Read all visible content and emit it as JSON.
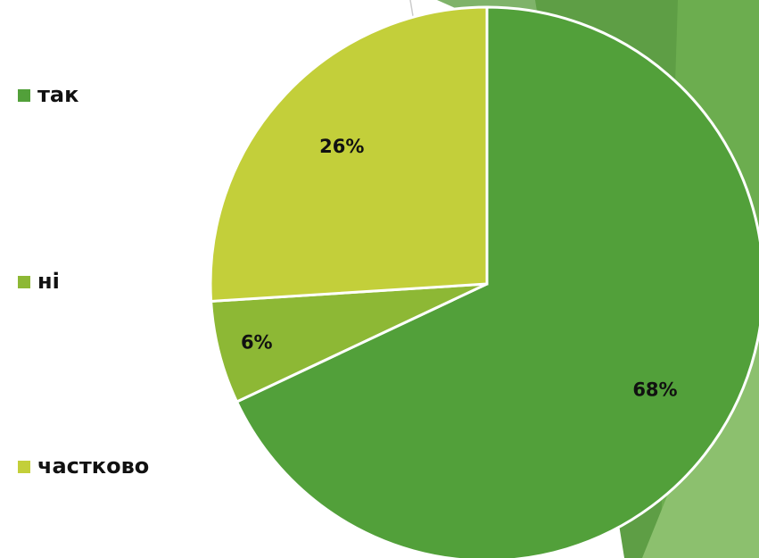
{
  "chart_data": {
    "type": "pie",
    "categories": [
      "так",
      "ні",
      "частково"
    ],
    "values": [
      68,
      6,
      26
    ],
    "value_labels": [
      "68%",
      "6%",
      "26%"
    ],
    "colors": [
      "#52a03a",
      "#8db835",
      "#c3cf3a"
    ],
    "legend": "left"
  }
}
